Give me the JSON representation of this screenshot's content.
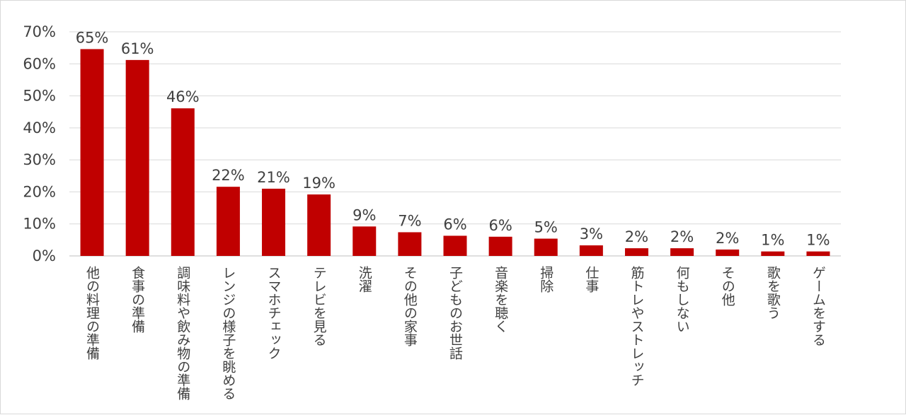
{
  "chart_data": {
    "type": "bar",
    "title": "",
    "xlabel": "",
    "ylabel": "",
    "ylim": [
      0,
      70
    ],
    "grid": true,
    "yticks": [
      "0%",
      "10%",
      "20%",
      "30%",
      "40%",
      "50%",
      "60%",
      "70%"
    ],
    "categories": [
      "他の料理の準備",
      "食事の準備",
      "調味料や飲み物の準備",
      "レンジの様子を眺める",
      "スマホチェック",
      "テレビを見る",
      "洗濯",
      "その他の家事",
      "子どものお世話",
      "音楽を聴く",
      "掃除",
      "仕事",
      "筋トレやストレッチ",
      "何もしない",
      "その他",
      "歌を歌う",
      "ゲームをする"
    ],
    "values": [
      64.6,
      61.2,
      46.1,
      21.6,
      21.0,
      19.2,
      9.2,
      7.4,
      6.3,
      6.0,
      5.4,
      3.3,
      2.4,
      2.4,
      2.0,
      1.4,
      1.4
    ],
    "data_labels": [
      "65%",
      "61%",
      "46%",
      "22%",
      "21%",
      "19%",
      "9%",
      "7%",
      "6%",
      "6%",
      "5%",
      "3%",
      "2%",
      "2%",
      "2%",
      "1%",
      "1%"
    ],
    "colors": {
      "bar": "#c00000",
      "grid": "#d9d9d9",
      "axis": "#bfbfbf",
      "text": "#404040"
    }
  }
}
